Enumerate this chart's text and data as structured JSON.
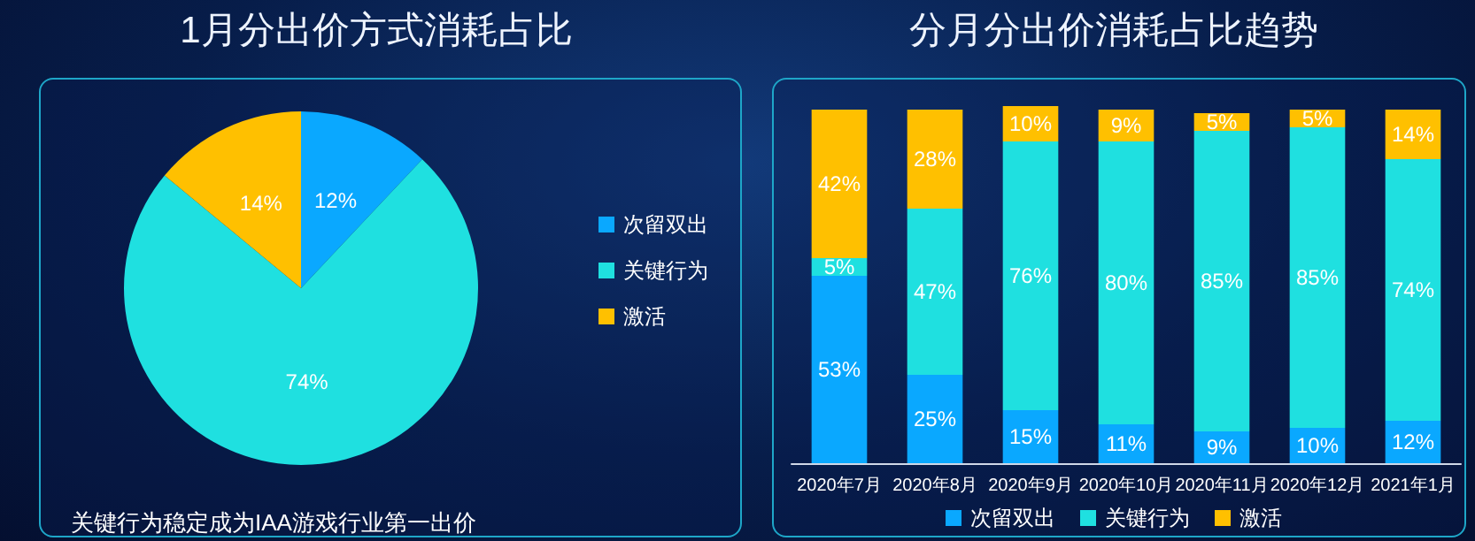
{
  "chart_data": [
    {
      "type": "pie",
      "title": "1月分出价方式消耗占比",
      "categories": [
        "次留双出",
        "关键行为",
        "激活"
      ],
      "values": [
        12,
        74,
        14
      ],
      "colors": [
        "#0aa8ff",
        "#1fe0e0",
        "#ffc000"
      ],
      "value_labels": [
        "12%",
        "74%",
        "14%"
      ],
      "legend": "right",
      "annotations": [
        "关键行为稳定成为IAA游戏行业第一出价"
      ]
    },
    {
      "type": "bar",
      "title": "分月分出价消耗占比趋势",
      "stacked": true,
      "tick_labels": "x",
      "categories": [
        "2020年7月",
        "2020年8月",
        "2020年9月",
        "2020年10月",
        "2020年11月",
        "2020年12月",
        "2021年1月"
      ],
      "legend": "bottom",
      "series": [
        {
          "name": "次留双出",
          "color": "#0aa8ff",
          "values": [
            53,
            25,
            15,
            11,
            9,
            10,
            12
          ],
          "value_labels": [
            "53%",
            "25%",
            "15%",
            "11%",
            "9%",
            "10%",
            "12%"
          ]
        },
        {
          "name": "关键行为",
          "color": "#1fe0e0",
          "values": [
            5,
            47,
            76,
            80,
            85,
            85,
            74
          ],
          "value_labels": [
            "5%",
            "47%",
            "76%",
            "80%",
            "85%",
            "85%",
            "74%"
          ]
        },
        {
          "name": "激活",
          "color": "#ffc000",
          "values": [
            42,
            28,
            10,
            9,
            5,
            5,
            14
          ],
          "value_labels": [
            "42%",
            "28%",
            "10%",
            "9%",
            "5%",
            "5%",
            "14%"
          ]
        }
      ]
    }
  ]
}
